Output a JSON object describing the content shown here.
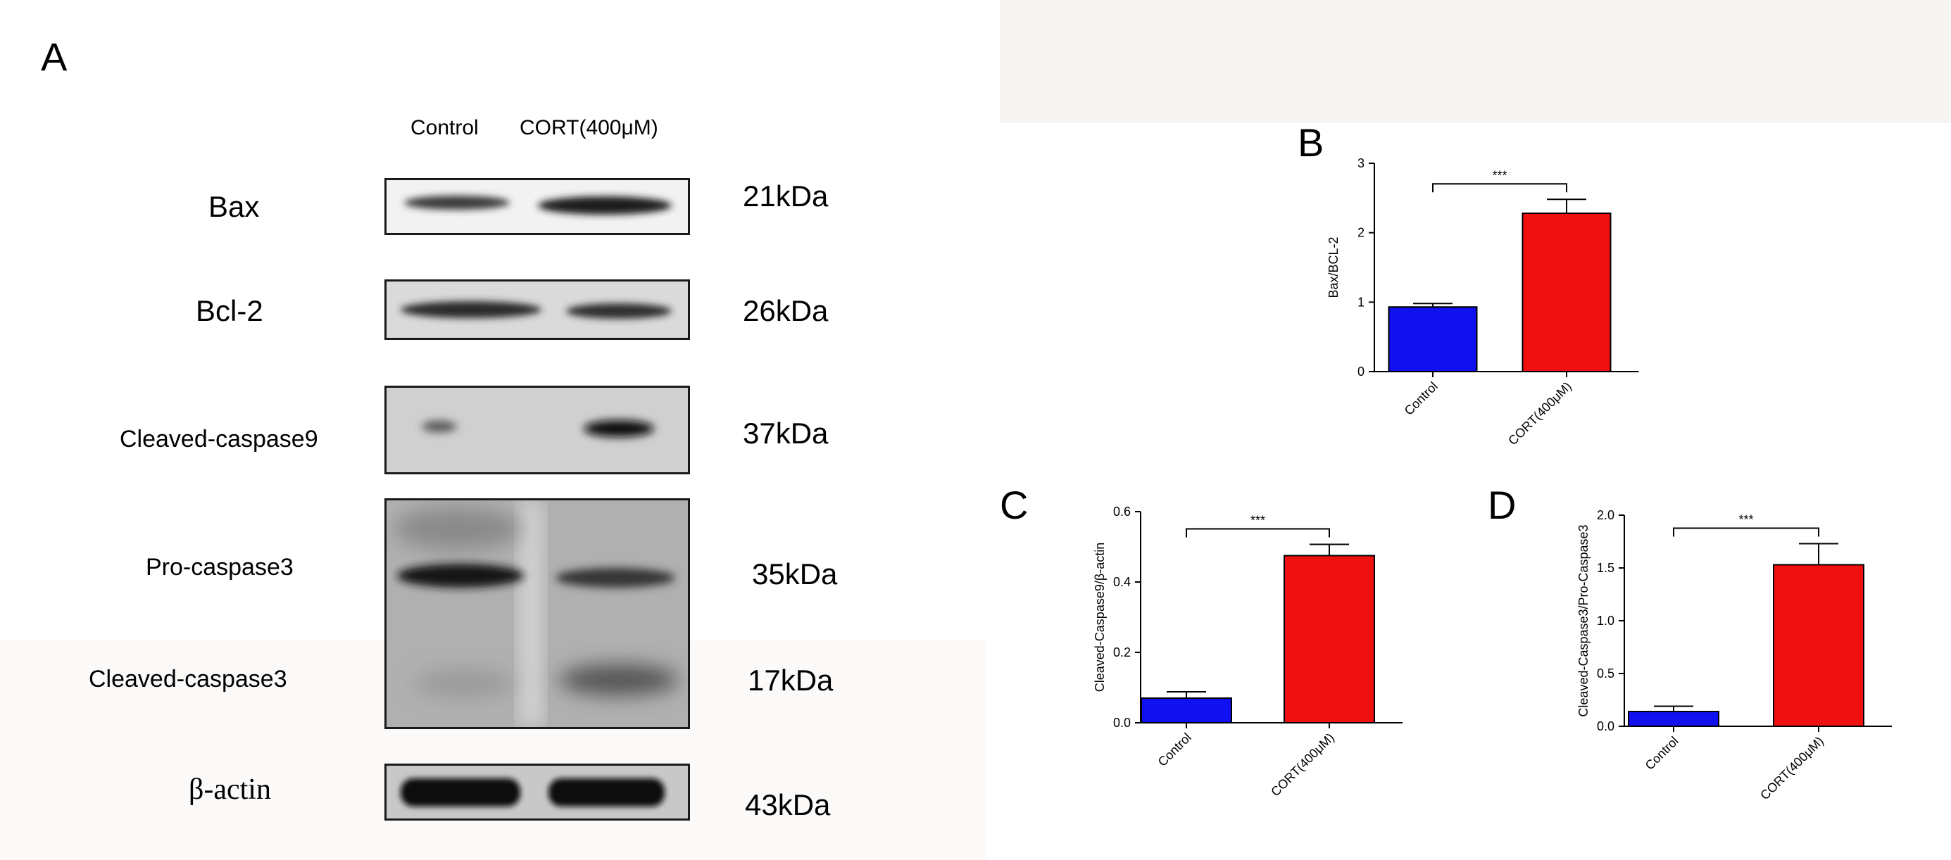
{
  "panels": {
    "A": "A",
    "B": "B",
    "C": "C",
    "D": "D"
  },
  "western_blot": {
    "lane_headers": [
      "Control",
      "CORT(400μM)"
    ],
    "rows": [
      {
        "protein": "Bax",
        "kda": "21kDa"
      },
      {
        "protein": "Bcl-2",
        "kda": "26kDa"
      },
      {
        "protein": "Cleaved-caspase9",
        "kda": "37kDa"
      },
      {
        "protein": "Pro-caspase3",
        "kda": "35kDa"
      },
      {
        "protein": "Cleaved-caspase3",
        "kda": "17kDa"
      },
      {
        "protein": "β-actin",
        "kda": "43kDa"
      }
    ]
  },
  "colors": {
    "control": "#1010f0",
    "cort": "#f01010"
  },
  "chart_data": [
    {
      "panel": "B",
      "type": "bar",
      "categories": [
        "Control",
        "CORT(400μM)"
      ],
      "values": [
        0.93,
        2.28
      ],
      "errors": [
        0.05,
        0.2
      ],
      "ylabel": "Bax/BCL-2",
      "ylim": [
        0,
        3
      ],
      "yticks": [
        0,
        1,
        2,
        3
      ],
      "ytick_labels": [
        "0",
        "1",
        "2",
        "3"
      ],
      "significance": "***"
    },
    {
      "panel": "C",
      "type": "bar",
      "categories": [
        "Control",
        "CORT(400μM)"
      ],
      "values": [
        0.07,
        0.475
      ],
      "errors": [
        0.018,
        0.032
      ],
      "ylabel": "Cleaved-Caspase9/β-actin",
      "ylim": [
        0,
        0.6
      ],
      "yticks": [
        0,
        0.2,
        0.4,
        0.6
      ],
      "ytick_labels": [
        "0.0",
        "0.2",
        "0.4",
        "0.6"
      ],
      "significance": "***"
    },
    {
      "panel": "D",
      "type": "bar",
      "categories": [
        "Control",
        "CORT(400μM)"
      ],
      "values": [
        0.14,
        1.53
      ],
      "errors": [
        0.05,
        0.2
      ],
      "ylabel": "Cleaved-Caspase3/Pro-Caspase3",
      "ylim": [
        0,
        2.0
      ],
      "yticks": [
        0,
        0.5,
        1.0,
        1.5,
        2.0
      ],
      "ytick_labels": [
        "0.0",
        "0.5",
        "1.0",
        "1.5",
        "2.0"
      ],
      "significance": "***"
    }
  ]
}
